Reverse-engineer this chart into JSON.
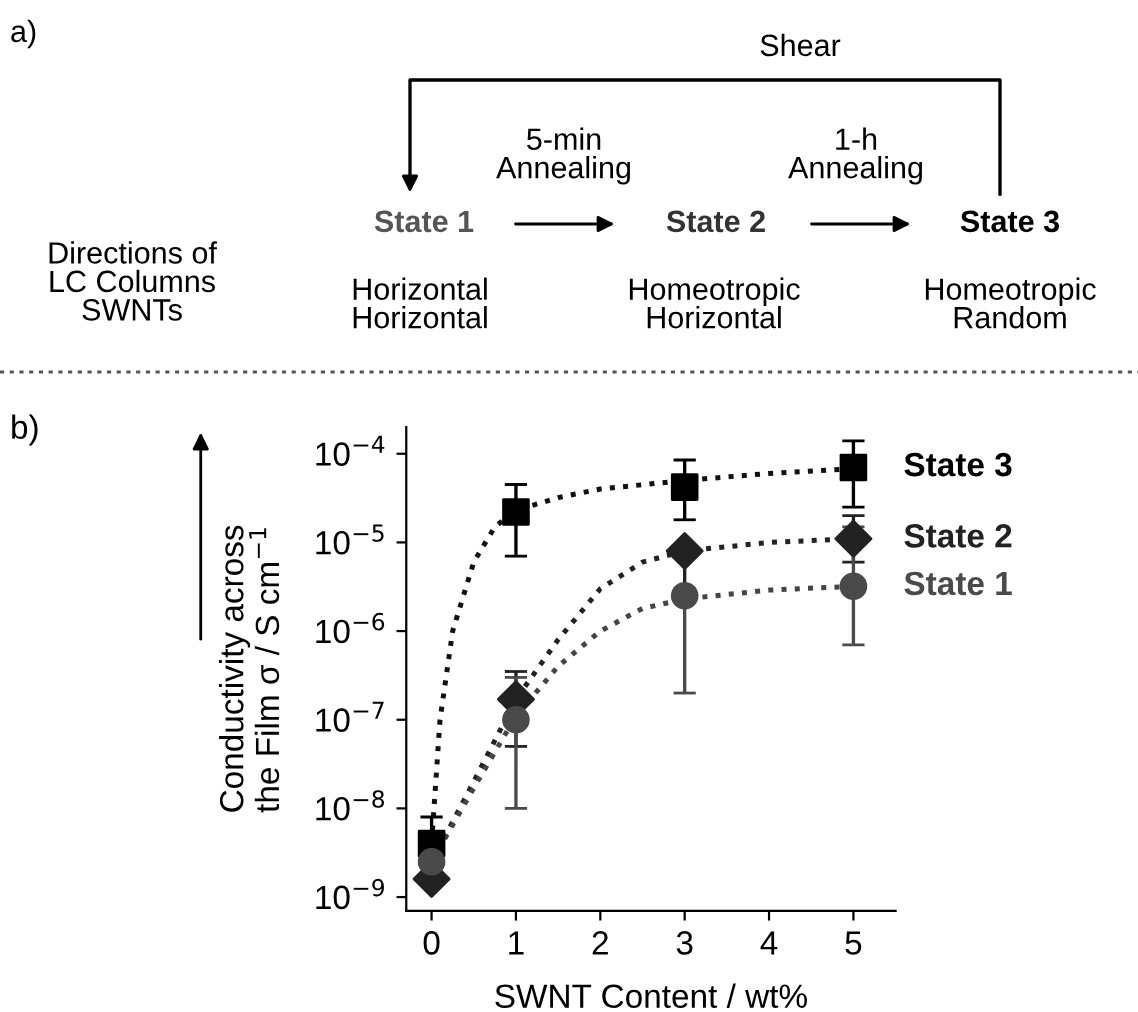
{
  "chart_data": [
    {
      "type": "other",
      "annotations": [
        "a)",
        "Shear",
        "5-min\nAnnealing",
        "1-h\nAnnealing",
        "State 1",
        "State 2",
        "State 3",
        "Directions of\nLC Columns\nSWNTs",
        "Horizontal\nHorizontal",
        "Homeotropic\nHorizontal",
        "Homeotropic\nRandom"
      ]
    },
    {
      "type": "scatter",
      "xlabel": "SWNT Content / wt%",
      "ylabel": "Conductivity across\nthe Film σ / S cm$^{−1}$",
      "annotations": [
        "b)"
      ],
      "log": "y",
      "xlim": [
        -0.3,
        5.5
      ],
      "xticks": [
        0,
        1,
        2,
        3,
        4,
        5
      ],
      "ylim": [
        7e-10,
        0.0002
      ],
      "yticks": [
        {
          "value": 1e-09,
          "label": "10$^{−9}$"
        },
        {
          "value": 1e-08,
          "label": "10$^{−8}$"
        },
        {
          "value": 1e-07,
          "label": "10$^{−7}$"
        },
        {
          "value": 1e-06,
          "label": "10$^{−6}$"
        },
        {
          "value": 1e-05,
          "label": "10$^{−5}$"
        },
        {
          "value": 0.0001,
          "label": "10$^{−4}$"
        }
      ],
      "grid": false,
      "legend": false,
      "series": [
        {
          "type": "line",
          "line_style": "dotted",
          "marker": "none",
          "color": "#111111",
          "x": [
            0,
            0.1,
            0.25,
            0.5,
            0.75,
            1,
            1.5,
            2,
            3,
            4,
            5
          ],
          "values": [
            4e-09,
            1e-07,
            1e-06,
            6e-06,
            1.5e-05,
            2.3e-05,
            3.2e-05,
            4e-05,
            5e-05,
            6e-05,
            6.8e-05
          ]
        },
        {
          "type": "line",
          "line_style": "dotted",
          "marker": "none",
          "color": "#222222",
          "x": [
            0,
            0.5,
            1,
            1.5,
            2,
            2.5,
            3,
            4,
            5
          ],
          "values": [
            2.5e-09,
            2e-08,
            1.7e-07,
            8e-07,
            3e-06,
            6e-06,
            8e-06,
            1e-05,
            1.1e-05
          ]
        },
        {
          "type": "line",
          "line_style": "dotted",
          "marker": "none",
          "color": "#444444",
          "x": [
            0,
            0.5,
            1,
            1.5,
            2,
            2.5,
            3,
            4,
            5
          ],
          "values": [
            2.5e-09,
            1.7e-08,
            1.1e-07,
            4e-07,
            1e-06,
            1.8e-06,
            2.3e-06,
            2.9e-06,
            3.2e-06
          ]
        },
        {
          "name": "State 3",
          "type": "scatter",
          "marker": "square",
          "color": "#000000",
          "x": [
            0,
            1,
            3,
            5
          ],
          "values": [
            4e-09,
            2.2e-05,
            4.2e-05,
            7e-05
          ],
          "errors": [
            [
              4e-09,
              8e-09
            ],
            [
              7e-06,
              4.5e-05
            ],
            [
              1.8e-05,
              8.5e-05
            ],
            [
              2.5e-05,
              0.00014
            ]
          ]
        },
        {
          "name": "State 2",
          "type": "scatter",
          "marker": "diamond",
          "color": "#222222",
          "x": [
            0,
            1,
            3,
            5
          ],
          "values": [
            1.6e-09,
            1.7e-07,
            8e-06,
            1.1e-05
          ],
          "errors": [
            null,
            [
              5e-08,
              3.5e-07
            ],
            [
              3e-06,
              8e-06
            ],
            [
              6e-06,
              2e-05
            ]
          ]
        },
        {
          "name": "State 1",
          "type": "scatter",
          "marker": "circle",
          "color": "#4a4a4a",
          "x": [
            0,
            1,
            3,
            5
          ],
          "values": [
            2.5e-09,
            1e-07,
            2.5e-06,
            3.2e-06
          ],
          "errors": [
            null,
            [
              1e-08,
              3e-07
            ],
            [
              2e-07,
              2.5e-06
            ],
            [
              7e-07,
              1.5e-05
            ]
          ]
        }
      ]
    }
  ]
}
